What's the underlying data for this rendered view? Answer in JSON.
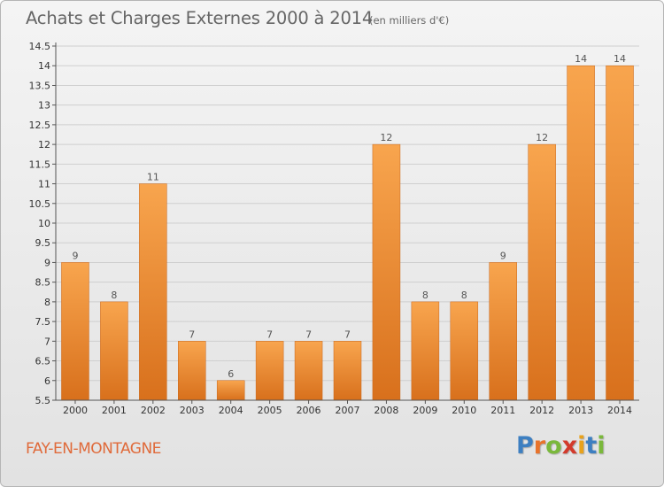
{
  "title": "Achats et Charges Externes 2000 à 2014",
  "subtitle": "(en milliers d'€)",
  "commune": "FAY-EN-MONTAGNE",
  "brand": {
    "text": "Proxiti",
    "letters": [
      {
        "ch": "P",
        "color": "#3d7fc1"
      },
      {
        "ch": "r",
        "color": "#e8732b"
      },
      {
        "ch": "o",
        "color": "#7ab83b"
      },
      {
        "ch": "x",
        "color": "#d33a2c"
      },
      {
        "ch": "i",
        "color": "#e8a21c"
      },
      {
        "ch": "t",
        "color": "#3d7fc1"
      },
      {
        "ch": "i",
        "color": "#7ab83b"
      }
    ]
  },
  "colors": {
    "bar_top": "#f8a54e",
    "bar_bottom": "#d8701c",
    "grid": "#cfcfcf",
    "axis": "#555555",
    "title": "#666666",
    "commune": "#e06a3a"
  },
  "chart_data": {
    "type": "bar",
    "title": "Achats et Charges Externes 2000 à 2014",
    "subtitle": "(en milliers d'€)",
    "categories": [
      "2000",
      "2001",
      "2002",
      "2003",
      "2004",
      "2005",
      "2006",
      "2007",
      "2008",
      "2009",
      "2010",
      "2011",
      "2012",
      "2013",
      "2014"
    ],
    "values": [
      9,
      8,
      11,
      7,
      6,
      7,
      7,
      7,
      12,
      8,
      8,
      9,
      12,
      14,
      14
    ],
    "value_labels": [
      "9",
      "8",
      "11",
      "7",
      "6",
      "7",
      "7",
      "7",
      "12",
      "8",
      "8",
      "9",
      "12",
      "14",
      "14"
    ],
    "ylim": [
      5.5,
      14.5
    ],
    "yticks": [
      5.5,
      6,
      6.5,
      7,
      7.5,
      8,
      8.5,
      9,
      9.5,
      10,
      10.5,
      11,
      11.5,
      12,
      12.5,
      13,
      13.5,
      14,
      14.5
    ],
    "ytick_labels": [
      "5.5",
      "6",
      "6.5",
      "7",
      "7.5",
      "8",
      "8.5",
      "9",
      "9.5",
      "10",
      "10.5",
      "11",
      "11.5",
      "12",
      "12.5",
      "13",
      "13.5",
      "14",
      "14.5"
    ],
    "grid": true,
    "xlabel": "",
    "ylabel": ""
  }
}
